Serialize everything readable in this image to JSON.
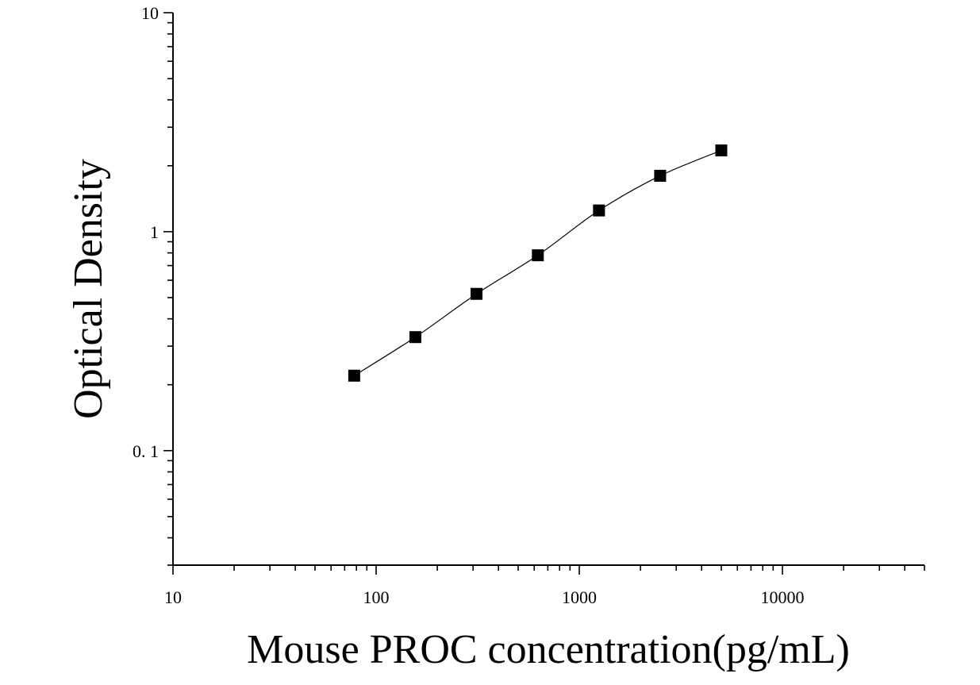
{
  "chart_data": {
    "type": "scatter",
    "title": "",
    "xlabel": "Mouse PROC concentration(pg/mL)",
    "ylabel": "Optical Density",
    "x_scale": "log",
    "y_scale": "log",
    "xlim": [
      10,
      50000
    ],
    "ylim": [
      0.03,
      10
    ],
    "x_ticks": [
      {
        "value": 10,
        "label": "10"
      },
      {
        "value": 100,
        "label": "100"
      },
      {
        "value": 1000,
        "label": "1000"
      },
      {
        "value": 10000,
        "label": "10000"
      }
    ],
    "y_ticks": [
      {
        "value": 0.1,
        "label": "0. 1"
      },
      {
        "value": 1,
        "label": "1"
      },
      {
        "value": 10,
        "label": "10"
      }
    ],
    "grid": false,
    "legend": "none",
    "marker": "square",
    "fit_curve": true,
    "points": [
      {
        "x": 78,
        "y": 0.22
      },
      {
        "x": 156,
        "y": 0.33
      },
      {
        "x": 312,
        "y": 0.52
      },
      {
        "x": 625,
        "y": 0.78
      },
      {
        "x": 1250,
        "y": 1.25
      },
      {
        "x": 2500,
        "y": 1.8
      },
      {
        "x": 5000,
        "y": 2.35
      }
    ],
    "colors": {
      "marker": "#000000",
      "curve": "#000000",
      "axis": "#000000"
    }
  }
}
